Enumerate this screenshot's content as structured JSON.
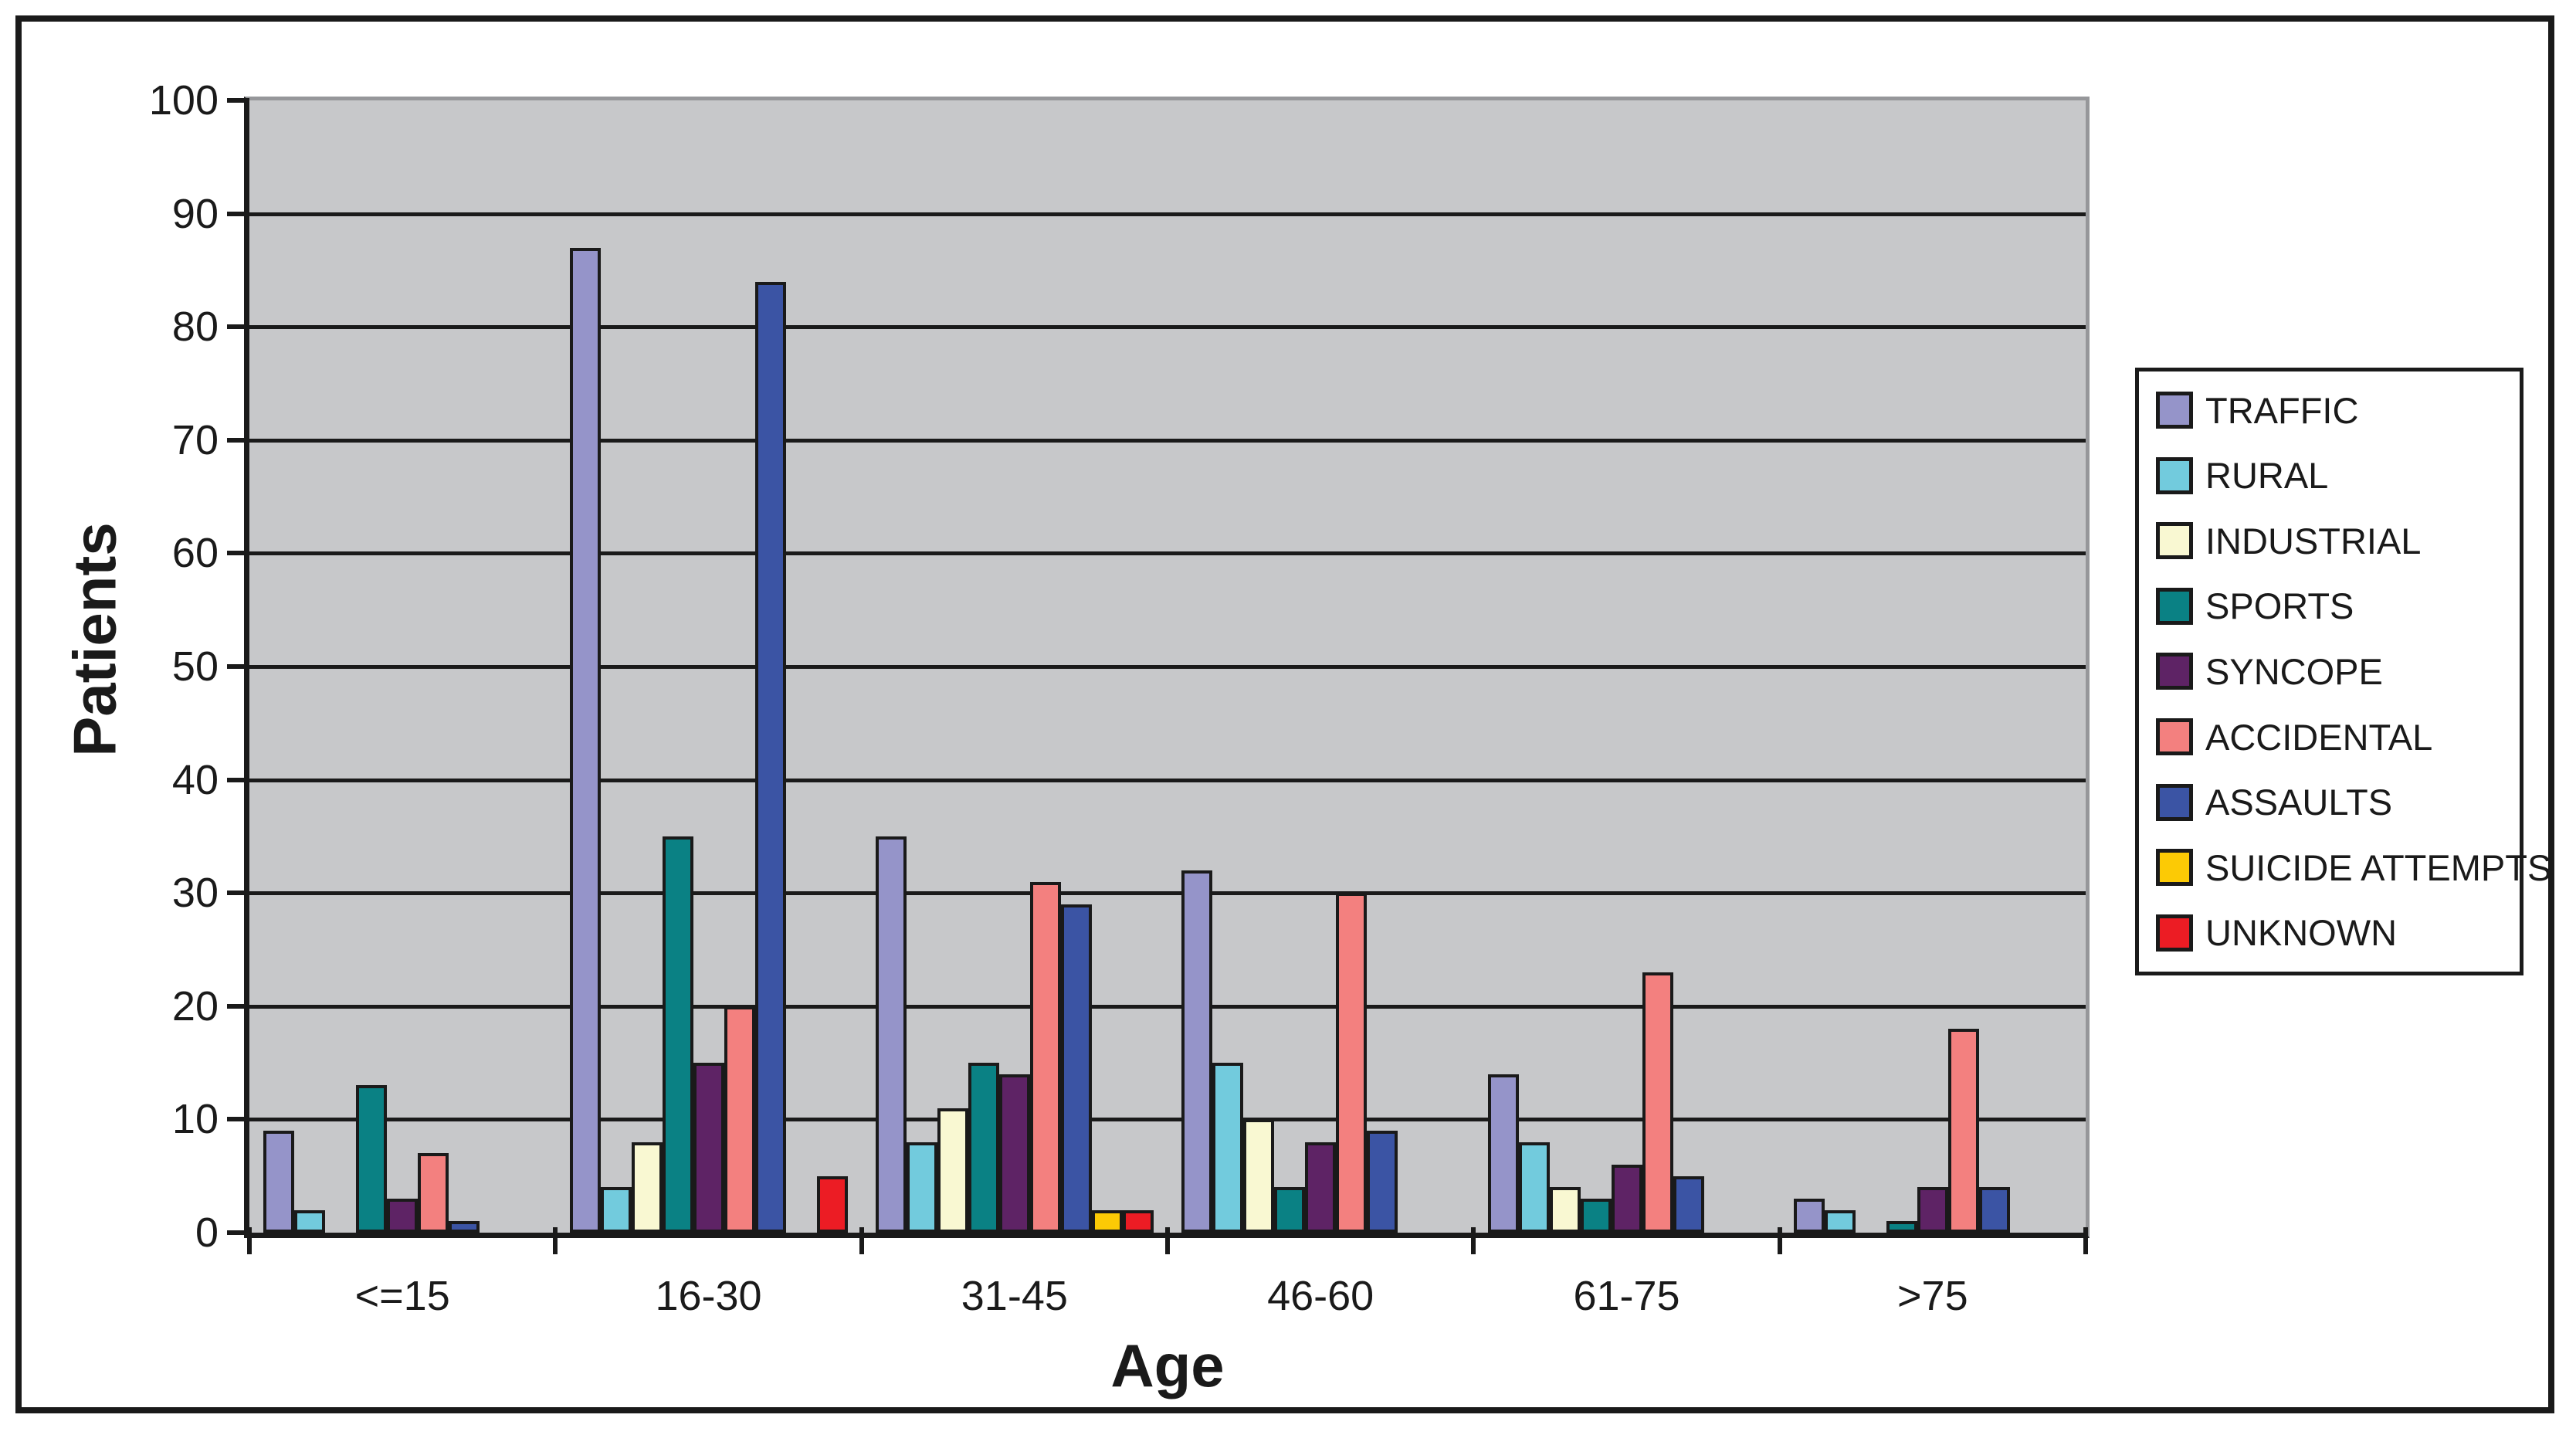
{
  "chart_data": {
    "type": "bar",
    "title": "",
    "xlabel": "Age",
    "ylabel": "Patients",
    "categories": [
      "<=15",
      "16-30",
      "31-45",
      "46-60",
      "61-75",
      ">75"
    ],
    "yticks": [
      0,
      10,
      20,
      30,
      40,
      50,
      60,
      70,
      80,
      90,
      100
    ],
    "ylim": [
      0,
      100
    ],
    "grid": true,
    "legend_position": "right",
    "plot_bg": "#c7c8ca",
    "gridline_color": "#1a1a1a",
    "series": [
      {
        "name": "TRAFFIC",
        "color": "#9594c9",
        "values": [
          9,
          87,
          35,
          32,
          14,
          3
        ]
      },
      {
        "name": "RURAL",
        "color": "#72cbdd",
        "values": [
          2,
          4,
          8,
          15,
          8,
          2
        ]
      },
      {
        "name": "INDUSTRIAL",
        "color": "#f9f8d2",
        "values": [
          0,
          8,
          11,
          10,
          4,
          0
        ]
      },
      {
        "name": "SPORTS",
        "color": "#0a8184",
        "values": [
          13,
          35,
          15,
          4,
          3,
          1
        ]
      },
      {
        "name": "SYNCOPE",
        "color": "#5e2365",
        "values": [
          3,
          15,
          14,
          8,
          6,
          4
        ]
      },
      {
        "name": "ACCIDENTAL",
        "color": "#f3807f",
        "values": [
          7,
          20,
          31,
          30,
          23,
          18
        ]
      },
      {
        "name": "ASSAULTS",
        "color": "#3b54a4",
        "values": [
          1,
          84,
          29,
          9,
          5,
          4
        ]
      },
      {
        "name": "SUICIDE ATTEMPTS",
        "color": "#fcca05",
        "values": [
          0,
          0,
          2,
          0,
          0,
          0
        ]
      },
      {
        "name": "UNKNOWN",
        "color": "#ec1c24",
        "values": [
          0,
          5,
          2,
          0,
          0,
          0
        ]
      }
    ]
  }
}
